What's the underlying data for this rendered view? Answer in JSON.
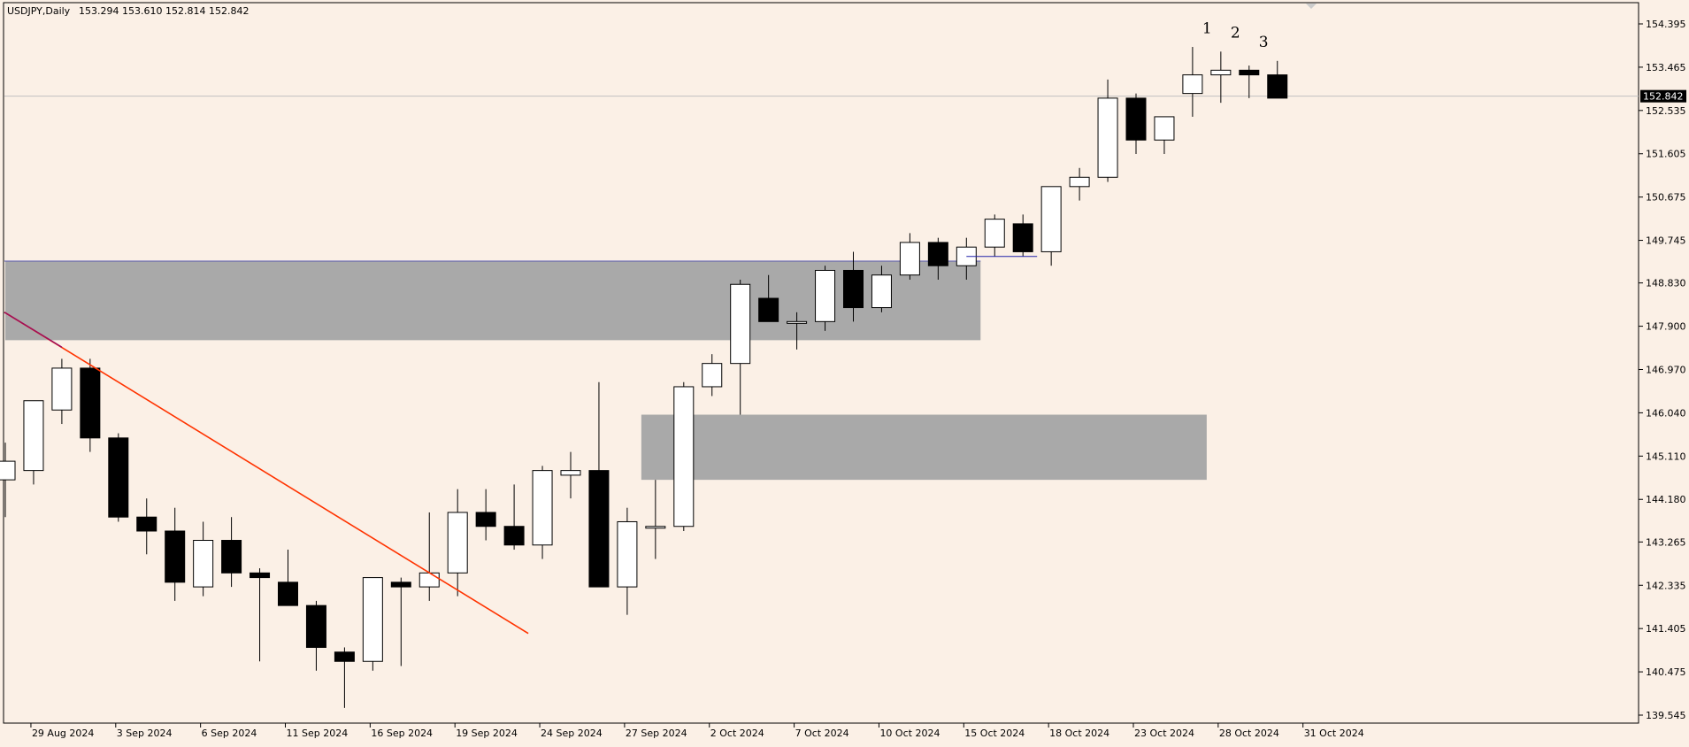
{
  "chart_data": {
    "type": "candlestick",
    "title": "USDJPY,Daily",
    "header_values": "153.294 153.610 152.814 152.842",
    "current_price": 152.842,
    "current_price_label": "152.842",
    "ylim": [
      139.3,
      154.8
    ],
    "ticks": [
      "154.395",
      "153.465",
      "152.535",
      "151.605",
      "150.675",
      "149.745",
      "148.830",
      "147.900",
      "146.970",
      "146.040",
      "145.110",
      "144.180",
      "143.265",
      "142.335",
      "141.405",
      "140.475",
      "139.545"
    ],
    "date_labels": [
      {
        "i": 1,
        "text": "29 Aug 2024"
      },
      {
        "i": 4,
        "text": "3 Sep 2024"
      },
      {
        "i": 7,
        "text": "6 Sep 2024"
      },
      {
        "i": 10,
        "text": "11 Sep 2024"
      },
      {
        "i": 13,
        "text": "16 Sep 2024"
      },
      {
        "i": 16,
        "text": "19 Sep 2024"
      },
      {
        "i": 19,
        "text": "24 Sep 2024"
      },
      {
        "i": 22,
        "text": "27 Sep 2024"
      },
      {
        "i": 25,
        "text": "2 Oct 2024"
      },
      {
        "i": 28,
        "text": "7 Oct 2024"
      },
      {
        "i": 31,
        "text": "10 Oct 2024"
      },
      {
        "i": 34,
        "text": "15 Oct 2024"
      },
      {
        "i": 37,
        "text": "18 Oct 2024"
      },
      {
        "i": 40,
        "text": "23 Oct 2024"
      },
      {
        "i": 43,
        "text": "28 Oct 2024"
      },
      {
        "i": 46,
        "text": "31 Oct 2024"
      }
    ],
    "candles": [
      {
        "o": 144.6,
        "h": 145.4,
        "l": 143.8,
        "c": 145.0
      },
      {
        "o": 144.8,
        "h": 146.2,
        "l": 144.5,
        "c": 146.3
      },
      {
        "o": 146.1,
        "h": 147.2,
        "l": 145.8,
        "c": 147.0
      },
      {
        "o": 147.0,
        "h": 147.2,
        "l": 145.2,
        "c": 145.5
      },
      {
        "o": 145.5,
        "h": 145.6,
        "l": 143.7,
        "c": 143.8
      },
      {
        "o": 143.8,
        "h": 144.2,
        "l": 143.0,
        "c": 143.5
      },
      {
        "o": 143.5,
        "h": 144.0,
        "l": 142.0,
        "c": 142.4
      },
      {
        "o": 142.3,
        "h": 143.7,
        "l": 142.1,
        "c": 143.3
      },
      {
        "o": 143.3,
        "h": 143.8,
        "l": 142.3,
        "c": 142.6
      },
      {
        "o": 142.6,
        "h": 142.7,
        "l": 140.7,
        "c": 142.5
      },
      {
        "o": 142.4,
        "h": 143.1,
        "l": 141.9,
        "c": 141.9
      },
      {
        "o": 141.9,
        "h": 142.0,
        "l": 140.5,
        "c": 141.0
      },
      {
        "o": 140.9,
        "h": 141.0,
        "l": 139.7,
        "c": 140.7
      },
      {
        "o": 140.7,
        "h": 142.5,
        "l": 140.5,
        "c": 142.5
      },
      {
        "o": 142.4,
        "h": 142.5,
        "l": 140.6,
        "c": 142.3
      },
      {
        "o": 142.3,
        "h": 143.9,
        "l": 142.0,
        "c": 142.6
      },
      {
        "o": 142.6,
        "h": 144.4,
        "l": 142.1,
        "c": 143.9
      },
      {
        "o": 143.9,
        "h": 144.4,
        "l": 143.3,
        "c": 143.6
      },
      {
        "o": 143.6,
        "h": 144.5,
        "l": 143.1,
        "c": 143.2
      },
      {
        "o": 143.2,
        "h": 144.9,
        "l": 142.9,
        "c": 144.8
      },
      {
        "o": 144.7,
        "h": 145.2,
        "l": 144.2,
        "c": 144.8
      },
      {
        "o": 144.8,
        "h": 146.7,
        "l": 142.3,
        "c": 142.3
      },
      {
        "o": 142.3,
        "h": 144.0,
        "l": 141.7,
        "c": 143.7
      },
      {
        "o": 143.6,
        "h": 144.6,
        "l": 142.9,
        "c": 143.6
      },
      {
        "o": 143.6,
        "h": 146.7,
        "l": 143.5,
        "c": 146.6
      },
      {
        "o": 146.6,
        "h": 147.3,
        "l": 146.4,
        "c": 147.1
      },
      {
        "o": 147.1,
        "h": 148.9,
        "l": 146.0,
        "c": 148.8
      },
      {
        "o": 148.5,
        "h": 149.0,
        "l": 148.0,
        "c": 148.0
      },
      {
        "o": 148.0,
        "h": 148.2,
        "l": 147.4,
        "c": 148.0
      },
      {
        "o": 148.0,
        "h": 149.2,
        "l": 147.8,
        "c": 149.1
      },
      {
        "o": 149.1,
        "h": 149.5,
        "l": 148.0,
        "c": 148.3
      },
      {
        "o": 148.3,
        "h": 149.2,
        "l": 148.2,
        "c": 149.0
      },
      {
        "o": 149.0,
        "h": 149.9,
        "l": 148.9,
        "c": 149.7
      },
      {
        "o": 149.7,
        "h": 149.8,
        "l": 148.9,
        "c": 149.2
      },
      {
        "o": 149.2,
        "h": 149.8,
        "l": 148.9,
        "c": 149.6
      },
      {
        "o": 149.6,
        "h": 150.3,
        "l": 149.4,
        "c": 150.2
      },
      {
        "o": 150.1,
        "h": 150.3,
        "l": 149.4,
        "c": 149.5
      },
      {
        "o": 149.5,
        "h": 150.9,
        "l": 149.2,
        "c": 150.9
      },
      {
        "o": 150.9,
        "h": 151.3,
        "l": 150.6,
        "c": 151.1
      },
      {
        "o": 151.1,
        "h": 153.2,
        "l": 151.0,
        "c": 152.8
      },
      {
        "o": 152.8,
        "h": 152.9,
        "l": 151.6,
        "c": 151.9
      },
      {
        "o": 151.9,
        "h": 152.4,
        "l": 151.6,
        "c": 152.4
      },
      {
        "o": 152.9,
        "h": 153.9,
        "l": 152.4,
        "c": 153.3
      },
      {
        "o": 153.3,
        "h": 153.8,
        "l": 152.7,
        "c": 153.4
      },
      {
        "o": 153.4,
        "h": 153.5,
        "l": 152.8,
        "c": 153.3
      },
      {
        "o": 153.3,
        "h": 153.6,
        "l": 152.8,
        "c": 152.8
      }
    ],
    "zones": [
      {
        "from_i": 0,
        "to_i": 34.5,
        "top": 149.3,
        "bottom": 147.6
      },
      {
        "from_i": 22.5,
        "to_i": 42.5,
        "top": 146.0,
        "bottom": 144.6
      }
    ],
    "trendline": {
      "x1": 0,
      "y1": 148.2,
      "x2": 18.5,
      "y2": 141.3
    },
    "hline": {
      "from_i": 34,
      "to_i": 36.5,
      "y": 149.4
    },
    "annotations": [
      {
        "i": 42.5,
        "text": "1",
        "y": 154.2
      },
      {
        "i": 43.5,
        "text": "2",
        "y": 154.1
      },
      {
        "i": 44.5,
        "text": "3",
        "y": 153.9
      }
    ]
  }
}
